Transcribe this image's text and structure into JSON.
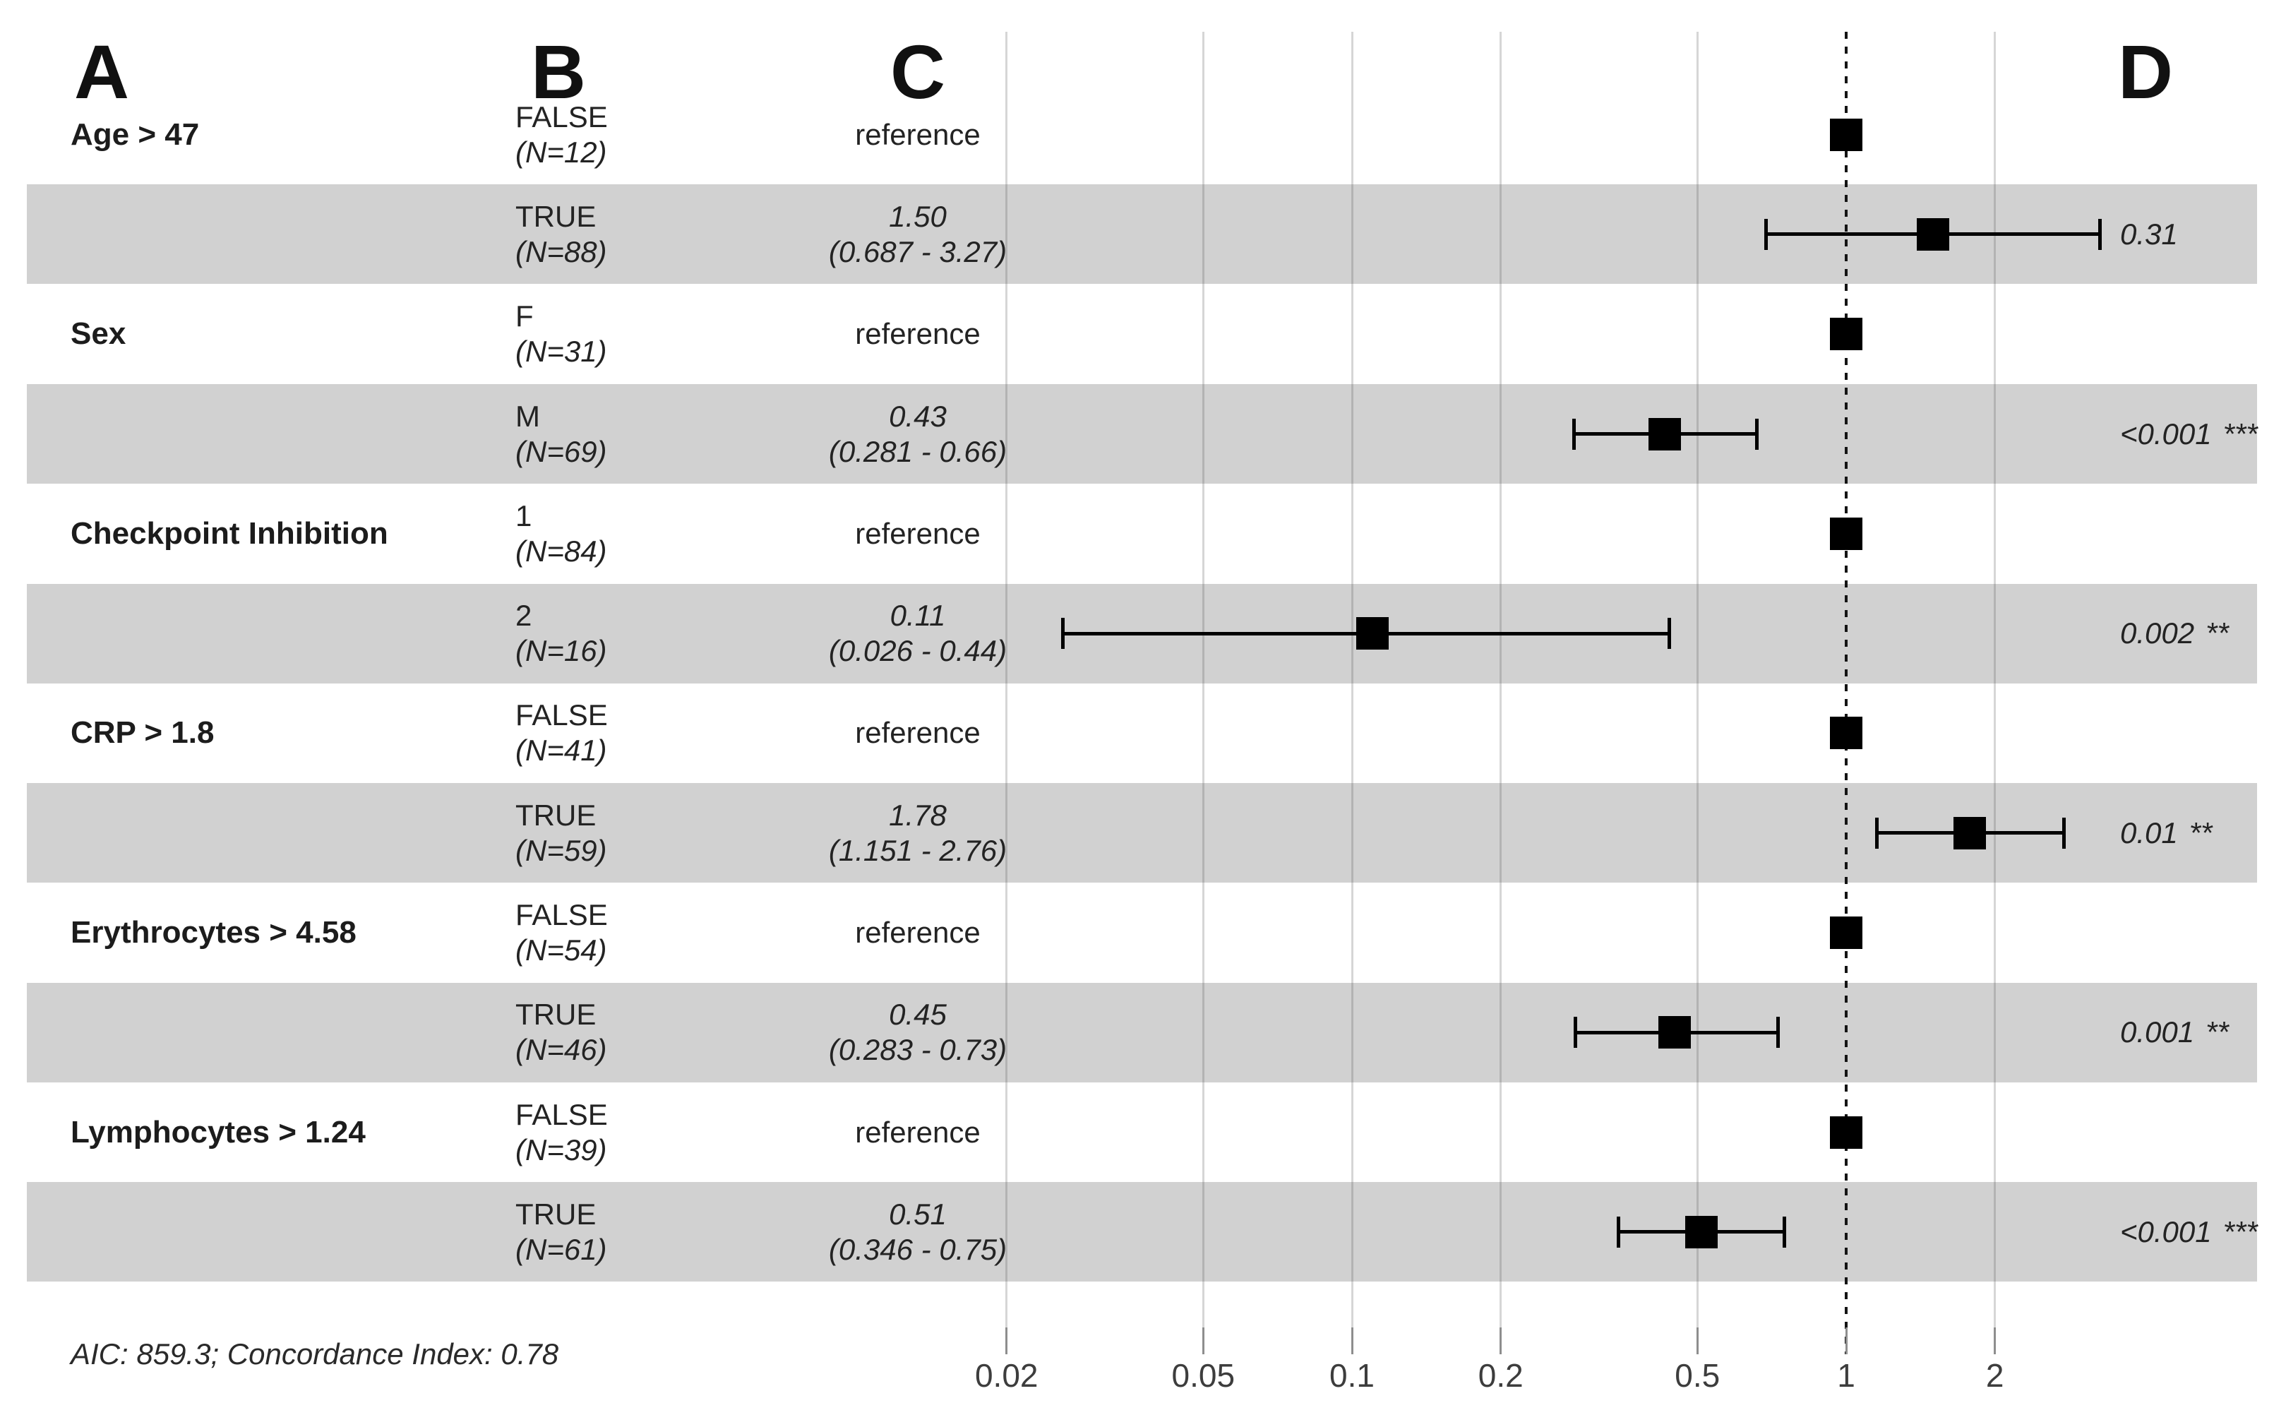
{
  "headers": {
    "a": "A",
    "b": "B",
    "c": "C",
    "d": "D"
  },
  "footnote": "AIC: 859.3; Concordance Index: 0.78",
  "colors": {
    "stripe": "#d1d1d1",
    "marker": "#000000",
    "axis_text": "#3d3d3d"
  },
  "chart_data": {
    "type": "forest",
    "x_scale": "log10",
    "xlim": [
      0.013,
      3.6
    ],
    "x_ticks": [
      0.02,
      0.05,
      0.1,
      0.2,
      0.5,
      1,
      2
    ],
    "x_tick_labels": [
      "0.02",
      "0.05",
      "0.1",
      "0.2",
      "0.5",
      "1",
      "2"
    ],
    "reference_line": 1,
    "grid": true,
    "rows": [
      {
        "variable": "Age > 47",
        "level": "FALSE",
        "n": "(N=12)",
        "estimate_label": "reference",
        "ci_label": "",
        "estimate": 1.0,
        "reference": true,
        "shaded": false,
        "p_value": "",
        "stars": ""
      },
      {
        "variable": "",
        "level": "TRUE",
        "n": "(N=88)",
        "estimate_label": "1.50",
        "ci_label": "(0.687 - 3.27)",
        "estimate": 1.5,
        "ci_low": 0.687,
        "ci_high": 3.27,
        "reference": false,
        "shaded": true,
        "p_value": "0.31",
        "stars": ""
      },
      {
        "variable": "Sex",
        "level": "F",
        "n": "(N=31)",
        "estimate_label": "reference",
        "ci_label": "",
        "estimate": 1.0,
        "reference": true,
        "shaded": false,
        "p_value": "",
        "stars": ""
      },
      {
        "variable": "",
        "level": "M",
        "n": "(N=69)",
        "estimate_label": "0.43",
        "ci_label": "(0.281 - 0.66)",
        "estimate": 0.43,
        "ci_low": 0.281,
        "ci_high": 0.66,
        "reference": false,
        "shaded": true,
        "p_value": "<0.001",
        "stars": "***"
      },
      {
        "variable": "Checkpoint Inhibition",
        "level": "1",
        "n": "(N=84)",
        "estimate_label": "reference",
        "ci_label": "",
        "estimate": 1.0,
        "reference": true,
        "shaded": false,
        "p_value": "",
        "stars": ""
      },
      {
        "variable": "",
        "level": "2",
        "n": "(N=16)",
        "estimate_label": "0.11",
        "ci_label": "(0.026 - 0.44)",
        "estimate": 0.11,
        "ci_low": 0.026,
        "ci_high": 0.44,
        "reference": false,
        "shaded": true,
        "p_value": "0.002",
        "stars": "**"
      },
      {
        "variable": "CRP > 1.8",
        "level": "FALSE",
        "n": "(N=41)",
        "estimate_label": "reference",
        "ci_label": "",
        "estimate": 1.0,
        "reference": true,
        "shaded": false,
        "p_value": "",
        "stars": ""
      },
      {
        "variable": "",
        "level": "TRUE",
        "n": "(N=59)",
        "estimate_label": "1.78",
        "ci_label": "(1.151 - 2.76)",
        "estimate": 1.78,
        "ci_low": 1.151,
        "ci_high": 2.76,
        "reference": false,
        "shaded": true,
        "p_value": "0.01",
        "stars": "**"
      },
      {
        "variable": "Erythrocytes > 4.58",
        "level": "FALSE",
        "n": "(N=54)",
        "estimate_label": "reference",
        "ci_label": "",
        "estimate": 1.0,
        "reference": true,
        "shaded": false,
        "p_value": "",
        "stars": ""
      },
      {
        "variable": "",
        "level": "TRUE",
        "n": "(N=46)",
        "estimate_label": "0.45",
        "ci_label": "(0.283 - 0.73)",
        "estimate": 0.45,
        "ci_low": 0.283,
        "ci_high": 0.73,
        "reference": false,
        "shaded": true,
        "p_value": "0.001",
        "stars": "**"
      },
      {
        "variable": "Lymphocytes > 1.24",
        "level": "FALSE",
        "n": "(N=39)",
        "estimate_label": "reference",
        "ci_label": "",
        "estimate": 1.0,
        "reference": true,
        "shaded": false,
        "p_value": "",
        "stars": ""
      },
      {
        "variable": "",
        "level": "TRUE",
        "n": "(N=61)",
        "estimate_label": "0.51",
        "ci_label": "(0.346 - 0.75)",
        "estimate": 0.51,
        "ci_low": 0.346,
        "ci_high": 0.75,
        "reference": false,
        "shaded": true,
        "p_value": "<0.001",
        "stars": "***"
      }
    ],
    "footnote": "AIC: 859.3; Concordance Index: 0.78"
  }
}
